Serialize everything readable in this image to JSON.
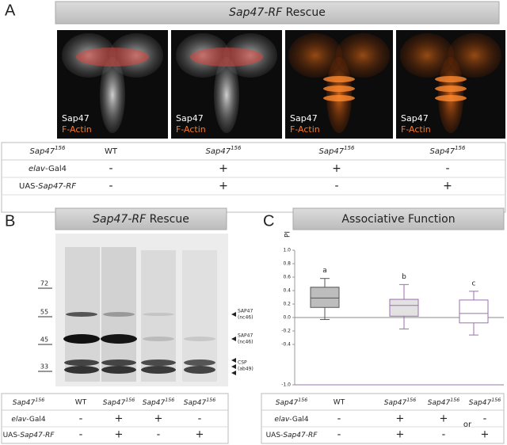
{
  "panel_a": {
    "label": "A",
    "title": [
      {
        "text": "Sap47-RF",
        "style": "italic"
      },
      {
        "text": " Rescue",
        "style": "normal"
      }
    ],
    "images": [
      {
        "stain_1": "Sap47",
        "stain_2": "F-Actin"
      },
      {
        "stain_1": "Sap47",
        "stain_2": "F-Actin"
      },
      {
        "stain_1": "Sap47",
        "stain_2": "F-Actin"
      },
      {
        "stain_1": "Sap47",
        "stain_2": "F-Actin"
      }
    ],
    "table": {
      "rows": [
        [
          [
            {
              "text": "Sap47",
              "style": "italic"
            },
            {
              "text": "156",
              "style": "sup"
            }
          ],
          "WT",
          [
            {
              "text": "Sap47",
              "style": "italic"
            },
            {
              "text": "156",
              "style": "sup"
            }
          ],
          [
            {
              "text": "Sap47",
              "style": "italic"
            },
            {
              "text": "156",
              "style": "sup"
            }
          ],
          [
            {
              "text": "Sap47",
              "style": "italic"
            },
            {
              "text": "156",
              "style": "sup"
            }
          ]
        ],
        [
          [
            {
              "text": "elav",
              "style": "italic"
            },
            {
              "text": "-Gal4",
              "style": "normal"
            }
          ],
          "-",
          "+",
          "+",
          "-"
        ],
        [
          [
            {
              "text": "UAS-",
              "style": "normal"
            },
            {
              "text": "Sap47-RF",
              "style": "italic"
            }
          ],
          "-",
          "+",
          "-",
          "+"
        ]
      ]
    }
  },
  "panel_b": {
    "label": "B",
    "title": [
      {
        "text": "Sap47-RF",
        "style": "italic"
      },
      {
        "text": " Rescue",
        "style": "normal"
      }
    ],
    "markers": [
      72,
      55,
      45,
      33
    ],
    "bands": [
      {
        "name": "SAP47",
        "antibody": "(nc46)"
      },
      {
        "name": "SAP47",
        "antibody": "(nc46)"
      },
      {
        "name": "CSP",
        "antibody": "(ab49)"
      }
    ],
    "table": {
      "rows": [
        [
          [
            {
              "text": "Sap47",
              "style": "italic"
            },
            {
              "text": "156",
              "style": "sup"
            }
          ],
          "WT",
          [
            {
              "text": "Sap47",
              "style": "italic"
            },
            {
              "text": "156",
              "style": "sup"
            }
          ],
          [
            {
              "text": "Sap47",
              "style": "italic"
            },
            {
              "text": "156",
              "style": "sup"
            }
          ],
          [
            {
              "text": "Sap47",
              "style": "italic"
            },
            {
              "text": "156",
              "style": "sup"
            }
          ]
        ],
        [
          [
            {
              "text": "elav",
              "style": "italic"
            },
            {
              "text": "-Gal4",
              "style": "normal"
            }
          ],
          "-",
          "+",
          "+",
          "-"
        ],
        [
          [
            {
              "text": "UAS-",
              "style": "normal"
            },
            {
              "text": "Sap47-RF",
              "style": "italic"
            }
          ],
          "-",
          "+",
          "-",
          "+"
        ]
      ]
    }
  },
  "panel_c": {
    "label": "C",
    "or": "or",
    "table": {
      "rows": [
        [
          [
            {
              "text": "Sap47",
              "style": "italic"
            },
            {
              "text": "156",
              "style": "sup"
            }
          ],
          "WT",
          [
            {
              "text": "Sap47",
              "style": "italic"
            },
            {
              "text": "156",
              "style": "sup"
            }
          ],
          [
            {
              "text": "Sap47",
              "style": "italic"
            },
            {
              "text": "156",
              "style": "sup"
            }
          ],
          [
            {
              "text": "Sap47",
              "style": "italic"
            },
            {
              "text": "156",
              "style": "sup"
            }
          ]
        ],
        [
          [
            {
              "text": "elav",
              "style": "italic"
            },
            {
              "text": "-Gal4",
              "style": "normal"
            }
          ],
          "-",
          "+",
          "+",
          "-"
        ],
        [
          [
            {
              "text": "UAS-",
              "style": "normal"
            },
            {
              "text": "Sap47-RF",
              "style": "italic"
            }
          ],
          "-",
          "+",
          "-",
          "+"
        ]
      ]
    }
  },
  "chart_data": {
    "type": "box",
    "title": "Associative Function",
    "ylabel": "PI",
    "ylim": [
      -1,
      1
    ],
    "yticks": [
      {
        "value": -1,
        "label": "-1.0"
      },
      -0.4,
      -0.2,
      {
        "value": 0,
        "label": "0.0"
      },
      0.2,
      0.4,
      0.6,
      0.8,
      {
        "value": 1,
        "label": "1.0"
      }
    ],
    "boxes": [
      {
        "min": -0.03,
        "q1": 0.15,
        "median": 0.29,
        "q3": 0.45,
        "max": 0.58,
        "color": "#bdbdbd",
        "edge_color": "#555555"
      },
      {
        "min": -0.17,
        "q1": 0.02,
        "median": 0.18,
        "q3": 0.27,
        "max": 0.49,
        "color": "#e2e2e2",
        "edge_color": "#9b6fb0"
      },
      {
        "min": -0.26,
        "q1": -0.08,
        "median": 0.06,
        "q3": 0.26,
        "max": 0.39,
        "color": "#ffffff",
        "edge_color": "#9b6fb0"
      }
    ],
    "annotations": [
      "a",
      "b",
      "c"
    ]
  }
}
